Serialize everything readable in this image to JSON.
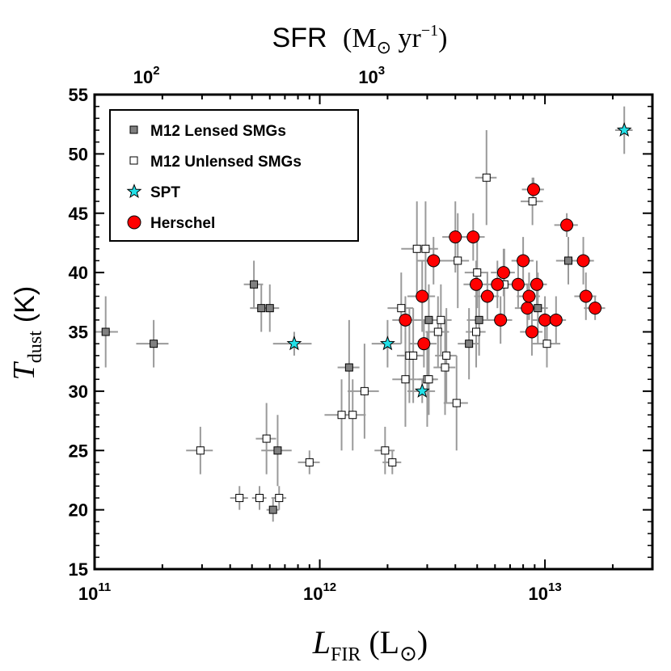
{
  "chart_data": {
    "type": "scatter",
    "xlabel": {
      "main": "L",
      "sub": "FIR",
      "unit": "(L",
      "unit_sub": "⊙",
      "close": ")"
    },
    "ylabel": {
      "main": "T",
      "sub": "dust",
      "unit": "(K)"
    },
    "top_axis_label": {
      "main": "SFR",
      "unit": "(M",
      "unit_sub": "⊙",
      "mid": " yr",
      "exp": "−1",
      "close": ")"
    },
    "x_scale": "log",
    "xlim": [
      100000000000.0,
      30000000000000.0
    ],
    "ylim": [
      15,
      55
    ],
    "x_ticks": [
      {
        "value": 100000000000.0,
        "base": "10",
        "exp": "11"
      },
      {
        "value": 1000000000000.0,
        "base": "10",
        "exp": "12"
      },
      {
        "value": 10000000000000.0,
        "base": "10",
        "exp": "13"
      }
    ],
    "y_ticks": [
      "15",
      "20",
      "25",
      "30",
      "35",
      "40",
      "45",
      "50",
      "55"
    ],
    "top_ticks": [
      {
        "value": 100.0,
        "lfir": 170000000000.0,
        "base": "10",
        "exp": "2"
      },
      {
        "value": 1000.0,
        "lfir": 1700000000000.0,
        "base": "10",
        "exp": "3"
      }
    ],
    "legend": {
      "position": "top-left",
      "entries": [
        {
          "name": "M12 Lensed SMGs",
          "marker": "square",
          "color": "#808080"
        },
        {
          "name": "M12 Unlensed SMGs",
          "marker": "square",
          "color": "#ffffff"
        },
        {
          "name": "SPT",
          "marker": "star",
          "color": "#22e0e8"
        },
        {
          "name": "Herschel",
          "marker": "circle",
          "color": "#ff0000"
        }
      ]
    },
    "series": [
      {
        "name": "M12 Lensed SMGs",
        "marker": "square",
        "color": "#808080",
        "points": [
          [
            112000000000.0,
            35,
            15000000000.0,
            3
          ],
          [
            183000000000.0,
            34,
            30000000000.0,
            2
          ],
          [
            510000000000.0,
            39,
            50000000000.0,
            2
          ],
          [
            550000000000.0,
            37,
            60000000000.0,
            2
          ],
          [
            600000000000.0,
            37,
            60000000000.0,
            2
          ],
          [
            620000000000.0,
            20,
            40000000000.0,
            1
          ],
          [
            650000000000.0,
            25,
            100000000000.0,
            3
          ],
          [
            1350000000000.0,
            32,
            150000000000.0,
            4
          ],
          [
            3050000000000.0,
            36,
            400000000000.0,
            3
          ],
          [
            4600000000000.0,
            34,
            500000000000.0,
            3
          ],
          [
            5100000000000.0,
            36,
            600000000000.0,
            3
          ],
          [
            9300000000000.0,
            37,
            1000000000000.0,
            3
          ],
          [
            12700000000000.0,
            41,
            1500000000000.0,
            2
          ]
        ]
      },
      {
        "name": "M12 Unlensed SMGs",
        "marker": "square",
        "color": "#ffffff",
        "points": [
          [
            295000000000.0,
            25,
            40000000000.0,
            2
          ],
          [
            440000000000.0,
            21,
            40000000000.0,
            1
          ],
          [
            540000000000.0,
            21,
            40000000000.0,
            1
          ],
          [
            580000000000.0,
            26,
            60000000000.0,
            3
          ],
          [
            660000000000.0,
            21,
            50000000000.0,
            1
          ],
          [
            900000000000.0,
            24,
            100000000000.0,
            1
          ],
          [
            1250000000000.0,
            28,
            200000000000.0,
            3
          ],
          [
            1400000000000.0,
            28,
            200000000000.0,
            3
          ],
          [
            1580000000000.0,
            30,
            250000000000.0,
            4
          ],
          [
            1950000000000.0,
            25,
            200000000000.0,
            2
          ],
          [
            2100000000000.0,
            24,
            200000000000.0,
            1
          ],
          [
            2300000000000.0,
            37,
            300000000000.0,
            3
          ],
          [
            2400000000000.0,
            31,
            300000000000.0,
            4
          ],
          [
            2500000000000.0,
            33,
            300000000000.0,
            4
          ],
          [
            2600000000000.0,
            33,
            300000000000.0,
            4
          ],
          [
            2700000000000.0,
            42,
            400000000000.0,
            4
          ],
          [
            2950000000000.0,
            42,
            400000000000.0,
            4
          ],
          [
            3000000000000.0,
            31,
            300000000000.0,
            4
          ],
          [
            3050000000000.0,
            31,
            300000000000.0,
            3
          ],
          [
            3350000000000.0,
            35,
            400000000000.0,
            3
          ],
          [
            3450000000000.0,
            36,
            400000000000.0,
            3
          ],
          [
            3600000000000.0,
            32,
            400000000000.0,
            4
          ],
          [
            3650000000000.0,
            33,
            400000000000.0,
            4
          ],
          [
            4050000000000.0,
            29,
            500000000000.0,
            4
          ],
          [
            4100000000000.0,
            41,
            500000000000.0,
            4
          ],
          [
            4950000000000.0,
            35,
            500000000000.0,
            3
          ],
          [
            5000000000000.0,
            40,
            600000000000.0,
            3
          ],
          [
            5500000000000.0,
            48,
            600000000000.0,
            4
          ],
          [
            6600000000000.0,
            39,
            800000000000.0,
            3
          ],
          [
            8800000000000.0,
            46,
            1000000000000.0,
            2
          ],
          [
            10200000000000.0,
            34,
            1500000000000.0,
            2
          ]
        ]
      },
      {
        "name": "SPT",
        "marker": "star",
        "color": "#22e0e8",
        "points": [
          [
            770000000000.0,
            34,
            150000000000.0,
            1
          ],
          [
            2000000000000.0,
            34,
            300000000000.0,
            2
          ],
          [
            2850000000000.0,
            30,
            400000000000.0,
            1
          ],
          [
            22500000000000.0,
            52,
            2000000000000.0,
            2
          ]
        ]
      },
      {
        "name": "Herschel",
        "marker": "circle",
        "color": "#ff0000",
        "points": [
          [
            2400000000000.0,
            36,
            300000000000.0,
            2
          ],
          [
            2850000000000.0,
            38,
            400000000000.0,
            3
          ],
          [
            2900000000000.0,
            34,
            400000000000.0,
            2
          ],
          [
            3200000000000.0,
            41,
            500000000000.0,
            2
          ],
          [
            4000000000000.0,
            43,
            500000000000.0,
            3
          ],
          [
            4800000000000.0,
            43,
            600000000000.0,
            2
          ],
          [
            4950000000000.0,
            39,
            600000000000.0,
            2
          ],
          [
            5550000000000.0,
            38,
            700000000000.0,
            2
          ],
          [
            6150000000000.0,
            39,
            700000000000.0,
            2
          ],
          [
            6350000000000.0,
            36,
            800000000000.0,
            2
          ],
          [
            6550000000000.0,
            40,
            800000000000.0,
            2
          ],
          [
            7600000000000.0,
            39,
            900000000000.0,
            2
          ],
          [
            8000000000000.0,
            41,
            900000000000.0,
            2
          ],
          [
            8350000000000.0,
            37,
            1000000000000.0,
            2
          ],
          [
            8500000000000.0,
            38,
            1000000000000.0,
            2
          ],
          [
            8750000000000.0,
            35,
            1000000000000.0,
            2
          ],
          [
            8900000000000.0,
            47,
            1000000000000.0,
            1
          ],
          [
            9200000000000.0,
            39,
            1000000000000.0,
            2
          ],
          [
            10000000000000.0,
            36,
            1200000000000.0,
            2
          ],
          [
            11200000000000.0,
            36,
            1200000000000.0,
            2
          ],
          [
            12500000000000.0,
            44,
            1500000000000.0,
            1
          ],
          [
            14800000000000.0,
            41,
            1700000000000.0,
            2
          ],
          [
            15200000000000.0,
            38,
            1700000000000.0,
            2
          ],
          [
            16700000000000.0,
            37,
            1800000000000.0,
            1
          ]
        ]
      }
    ]
  }
}
